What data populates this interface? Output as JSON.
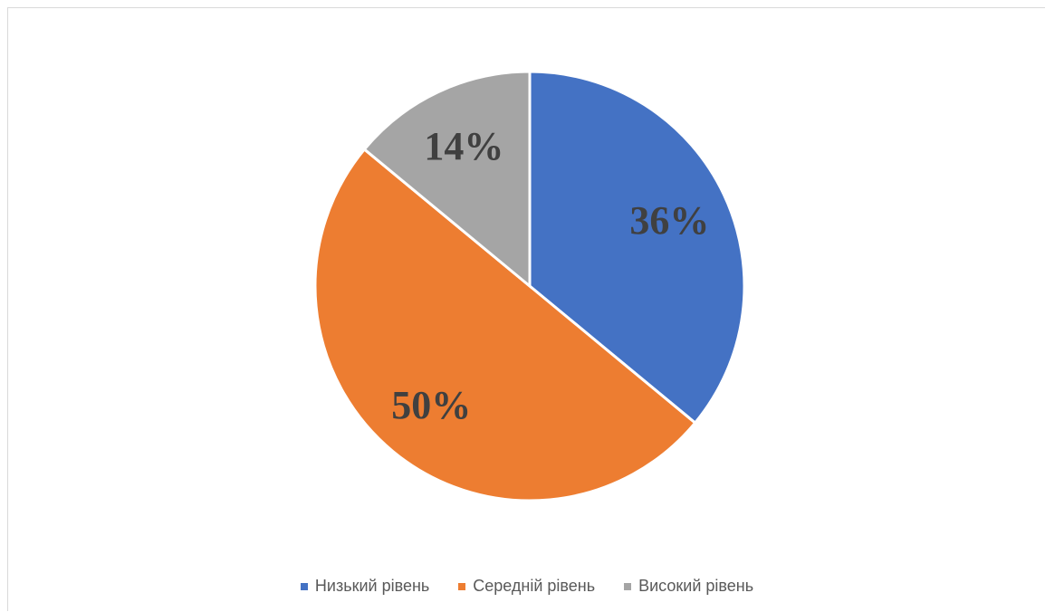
{
  "chart_data": {
    "type": "pie",
    "title": "",
    "categories": [
      "Низький рівень",
      "Середній рівень",
      "Високий рівень"
    ],
    "values": [
      36,
      50,
      14
    ],
    "data_labels": [
      "36%",
      "50%",
      "14%"
    ],
    "colors": [
      "#4472c4",
      "#ed7d31",
      "#a5a5a5"
    ],
    "legend_position": "bottom",
    "start_angle": "12 o'clock, clockwise"
  }
}
